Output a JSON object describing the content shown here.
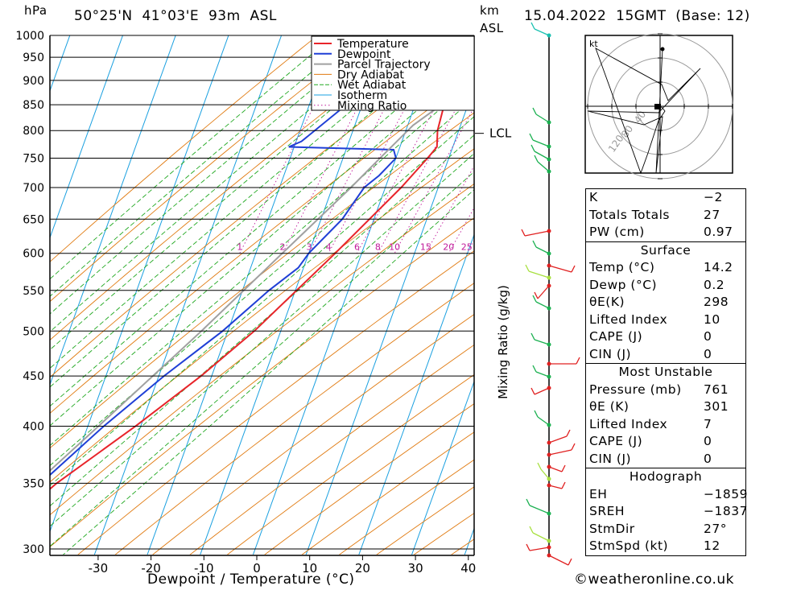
{
  "header": {
    "location": "50°25'N  41°03'E  93m  ASL",
    "datetime": "15.04.2022  15GMT  (Base: 12)",
    "hpa_label": "hPa",
    "km_label": "km",
    "asl_label": "ASL"
  },
  "footer": {
    "credit": "©weatheronline.co.uk"
  },
  "colors": {
    "temperature": "#e8242a",
    "dewpoint": "#1f3fd6",
    "parcel": "#a0a0a0",
    "dry_adiabat": "#e07a10",
    "wet_adiabat": "#21a821",
    "isotherm": "#1aa0e0",
    "mixing_ratio": "#c01a9a"
  },
  "chart_data": {
    "type": "skew-t log-p sounding",
    "xlabel": "Dewpoint / Temperature (°C)",
    "ylabel_right": "Mixing Ratio (g/kg)",
    "pressure_levels": [
      300,
      350,
      400,
      450,
      500,
      550,
      600,
      650,
      700,
      750,
      800,
      850,
      900,
      950,
      1000
    ],
    "temperature_ticks": [
      -30,
      -20,
      -10,
      0,
      10,
      20,
      30,
      40
    ],
    "mixing_ratio_labels": [
      "1",
      "2",
      "3",
      "4",
      "6",
      "8",
      "10",
      "15",
      "20",
      "25"
    ],
    "lcl_label": "LCL",
    "lcl_pressure": 810,
    "legend": [
      "Temperature",
      "Dewpoint",
      "Parcel Trajectory",
      "Dry Adiabat",
      "Wet Adiabat",
      "Isotherm",
      "Mixing Ratio"
    ],
    "series": [
      {
        "name": "Temperature",
        "p": [
          1000,
          990,
          950,
          900,
          850,
          800,
          770,
          750,
          700,
          600,
          500,
          450,
          400,
          350,
          300
        ],
        "t": [
          14.2,
          12.8,
          9.5,
          6.5,
          5.5,
          6.0,
          7.0,
          6.0,
          3.0,
          -5.0,
          -15.0,
          -22.0,
          -31.0,
          -42.0,
          -52.0
        ]
      },
      {
        "name": "Dewpoint",
        "p": [
          1000,
          990,
          950,
          900,
          870,
          850,
          780,
          770,
          765,
          750,
          720,
          700,
          650,
          600,
          580,
          550,
          500,
          450,
          400,
          350,
          300
        ],
        "t": [
          0.2,
          -0.5,
          -1.0,
          -2.0,
          -7.0,
          -13.0,
          -19.0,
          -21.0,
          -1.0,
          0.0,
          -2.0,
          -4.0,
          -6.0,
          -10.0,
          -11.0,
          -15.0,
          -21.0,
          -29.0,
          -37.0,
          -45.0,
          -54.0
        ]
      },
      {
        "name": "Parcel Trajectory",
        "p": [
          1000,
          900,
          850,
          810,
          750,
          700,
          600,
          500,
          400,
          300
        ],
        "t": [
          14.2,
          9.0,
          5.0,
          1.0,
          -3.0,
          -6.5,
          -15.0,
          -25.0,
          -38.0,
          -55.0
        ]
      }
    ],
    "hodograph": {
      "unit_label": "kt",
      "ring_labels": [
        "40",
        "80",
        "120"
      ]
    }
  },
  "indices": [
    {
      "label": "K",
      "value": "−2"
    },
    {
      "label": "Totals Totals",
      "value": "27"
    },
    {
      "label": "PW (cm)",
      "value": "0.97"
    }
  ],
  "surface": {
    "title": "Surface",
    "rows": [
      {
        "label": "Temp (°C)",
        "value": "14.2"
      },
      {
        "label": "Dewp (°C)",
        "value": "0.2"
      },
      {
        "label": "θE(K)",
        "value": "298"
      },
      {
        "label": "Lifted Index",
        "value": "10"
      },
      {
        "label": "CAPE (J)",
        "value": "0"
      },
      {
        "label": "CIN (J)",
        "value": "0"
      }
    ]
  },
  "most_unstable": {
    "title": "Most Unstable",
    "rows": [
      {
        "label": "Pressure (mb)",
        "value": "761"
      },
      {
        "label": "θE (K)",
        "value": "301"
      },
      {
        "label": "Lifted Index",
        "value": "7"
      },
      {
        "label": "CAPE (J)",
        "value": "0"
      },
      {
        "label": "CIN (J)",
        "value": "0"
      }
    ]
  },
  "hodograph_table": {
    "title": "Hodograph",
    "rows": [
      {
        "label": "EH",
        "value": "−1859"
      },
      {
        "label": "SREH",
        "value": "−1837"
      },
      {
        "label": "StmDir",
        "value": "27°"
      },
      {
        "label": "StmSpd (kt)",
        "value": "12"
      }
    ]
  }
}
